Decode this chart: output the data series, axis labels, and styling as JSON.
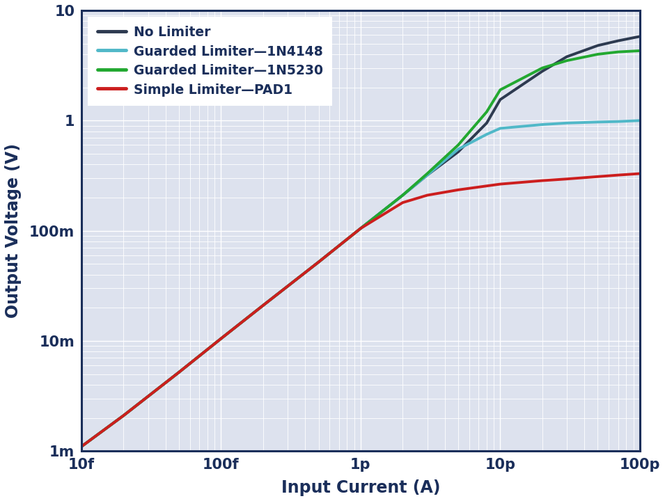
{
  "xlabel": "Input Current (A)",
  "ylabel": "Output Voltage (V)",
  "xlim": [
    1e-14,
    1e-10
  ],
  "ylim": [
    0.001,
    10
  ],
  "x_ticks": [
    1e-14,
    1e-13,
    1e-12,
    1e-11,
    1e-10
  ],
  "x_tick_labels": [
    "10f",
    "100f",
    "1p",
    "10p",
    "100p"
  ],
  "y_ticks": [
    0.001,
    0.01,
    0.1,
    1.0,
    10.0
  ],
  "y_tick_labels": [
    "1m",
    "10m",
    "100m",
    "1",
    "10"
  ],
  "background_color": "#dde2ee",
  "figure_color": "#ffffff",
  "border_color": "#1a2e5a",
  "axis_label_color": "#1a2e5a",
  "tick_label_color": "#1a2e5a",
  "legend_text_color": "#1a2e5a",
  "grid_major_color": "#ffffff",
  "grid_minor_color": "#ffffff",
  "series": [
    {
      "label": "No Limiter",
      "color": "#2d3a50",
      "linewidth": 2.8,
      "x": [
        1e-14,
        2e-14,
        5e-14,
        1e-13,
        2e-13,
        5e-13,
        1e-12,
        2e-12,
        3e-12,
        5e-12,
        8e-12,
        1e-11,
        2e-11,
        3e-11,
        5e-11,
        7e-11,
        1e-10
      ],
      "y": [
        0.0011,
        0.0021,
        0.0052,
        0.0105,
        0.021,
        0.052,
        0.105,
        0.21,
        0.32,
        0.52,
        0.95,
        1.55,
        2.8,
        3.8,
        4.8,
        5.3,
        5.8
      ]
    },
    {
      "label": "Guarded Limiter—1N4148",
      "color": "#50b8c8",
      "linewidth": 2.8,
      "x": [
        1e-14,
        2e-14,
        5e-14,
        1e-13,
        2e-13,
        5e-13,
        1e-12,
        2e-12,
        3e-12,
        5e-12,
        8e-12,
        1e-11,
        2e-11,
        3e-11,
        5e-11,
        7e-11,
        1e-10
      ],
      "y": [
        0.0011,
        0.0021,
        0.0052,
        0.0105,
        0.021,
        0.052,
        0.105,
        0.21,
        0.32,
        0.55,
        0.75,
        0.85,
        0.92,
        0.95,
        0.97,
        0.98,
        1.0
      ]
    },
    {
      "label": "Guarded Limiter—1N5230",
      "color": "#22a830",
      "linewidth": 2.8,
      "x": [
        1e-14,
        2e-14,
        5e-14,
        1e-13,
        2e-13,
        5e-13,
        1e-12,
        2e-12,
        3e-12,
        5e-12,
        8e-12,
        1e-11,
        2e-11,
        3e-11,
        5e-11,
        7e-11,
        1e-10
      ],
      "y": [
        0.0011,
        0.0021,
        0.0052,
        0.0105,
        0.021,
        0.052,
        0.105,
        0.21,
        0.33,
        0.6,
        1.2,
        1.9,
        3.0,
        3.5,
        4.0,
        4.2,
        4.3
      ]
    },
    {
      "label": "Simple Limiter—PAD1",
      "color": "#cc1e1e",
      "linewidth": 2.8,
      "x": [
        1e-14,
        2e-14,
        5e-14,
        1e-13,
        2e-13,
        5e-13,
        1e-12,
        2e-12,
        3e-12,
        5e-12,
        8e-12,
        1e-11,
        2e-11,
        3e-11,
        5e-11,
        7e-11,
        1e-10
      ],
      "y": [
        0.0011,
        0.0021,
        0.0052,
        0.0105,
        0.021,
        0.052,
        0.105,
        0.18,
        0.21,
        0.235,
        0.255,
        0.265,
        0.285,
        0.295,
        0.31,
        0.32,
        0.33
      ]
    }
  ]
}
